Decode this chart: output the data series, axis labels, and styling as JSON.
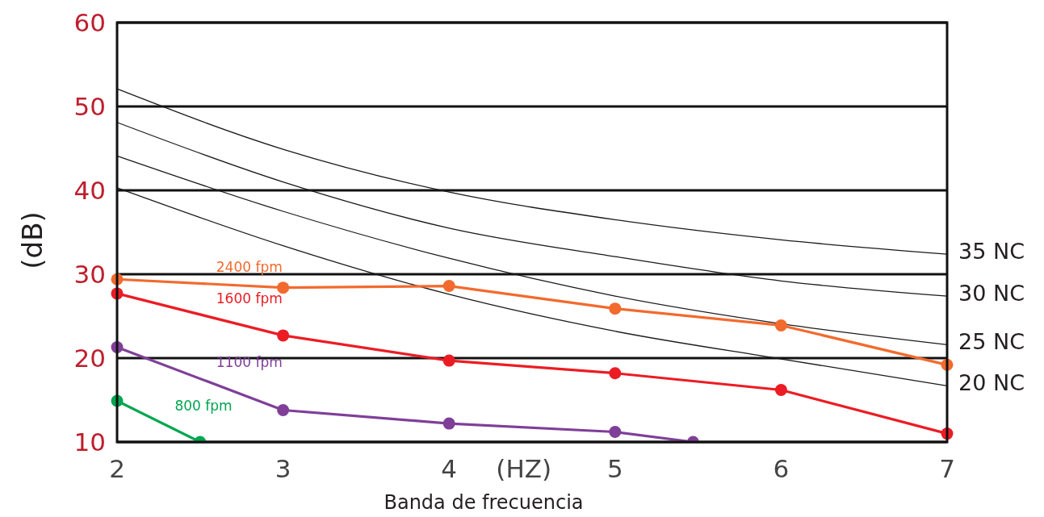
{
  "chart_data": {
    "type": "line",
    "xlabel": "Banda de frecuencia",
    "ylabel": "(dB)",
    "annotations": [
      "(HZ)"
    ],
    "xlim": [
      2,
      7
    ],
    "xticks": [
      2,
      3,
      4,
      5,
      6,
      7
    ],
    "ylim": [
      10,
      60
    ],
    "yticks": [
      10,
      20,
      30,
      40,
      50,
      60
    ],
    "grid": "y",
    "marker": "circle",
    "line_style": "solid",
    "series": [
      {
        "name": "35 NC",
        "color": "#1a1a1a",
        "marker": "none",
        "x": [
          2,
          3,
          4,
          5,
          6,
          7
        ],
        "values": [
          52.1,
          44.9,
          39.8,
          36.5,
          34.1,
          32.4
        ]
      },
      {
        "name": "30 NC",
        "color": "#1a1a1a",
        "marker": "none",
        "x": [
          2,
          3,
          4,
          5,
          6,
          7
        ],
        "values": [
          48.1,
          41,
          35.5,
          32.1,
          29.2,
          27.4
        ]
      },
      {
        "name": "25 NC",
        "color": "#1a1a1a",
        "marker": "none",
        "x": [
          2,
          3,
          4,
          5,
          6,
          7
        ],
        "values": [
          44.1,
          37.5,
          31.9,
          27.4,
          24.1,
          21.6
        ]
      },
      {
        "name": "20 NC",
        "color": "#1a1a1a",
        "marker": "none",
        "x": [
          2,
          3,
          4,
          5,
          6,
          7
        ],
        "values": [
          40.3,
          33.4,
          27.6,
          23.2,
          19.9,
          16.7
        ]
      },
      {
        "name": "2400 fpm",
        "color": "#f26a2d",
        "x": [
          2,
          3,
          4,
          5,
          6,
          7
        ],
        "values": [
          29.4,
          28.4,
          28.6,
          25.9,
          23.9,
          19.2
        ]
      },
      {
        "name": "1600 fpm",
        "color": "#ec1c24",
        "x": [
          2,
          3,
          4,
          5,
          6,
          7
        ],
        "values": [
          27.7,
          22.7,
          19.7,
          18.2,
          16.2,
          11
        ]
      },
      {
        "name": "1100 fpm",
        "color": "#7f3f98",
        "x": [
          2,
          3,
          4,
          5,
          5.47
        ],
        "values": [
          21.3,
          13.8,
          12.2,
          11.2,
          10
        ]
      },
      {
        "name": "800 fpm",
        "color": "#00a651",
        "x": [
          2,
          2.5
        ],
        "values": [
          14.9,
          10
        ]
      }
    ]
  }
}
